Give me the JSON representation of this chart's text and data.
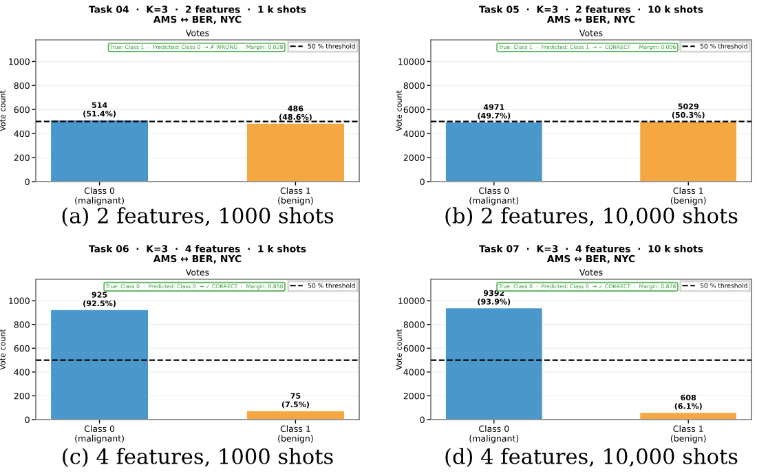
{
  "chart_data": [
    {
      "type": "bar",
      "title": "Task 04  ·  K=3  ·  2 features  ·  1 k shots\nAMS ↔ BER, NYC",
      "subtitle": "Votes",
      "ylabel": "Vote count",
      "categories": [
        "Class 0\n(malignant)",
        "Class 1\n(benign)"
      ],
      "colors": [
        "#4a98cb",
        "#f5a742"
      ],
      "values": [
        514,
        486
      ],
      "value_labels": [
        "514\n(51.4%)",
        "486\n(48.6%)"
      ],
      "ylim": [
        0,
        1180
      ],
      "yticks": [
        0,
        200,
        400,
        600,
        800,
        1000
      ],
      "grid": "y",
      "ref_lines": [
        {
          "axis": "y",
          "value": 500,
          "label": "50 % threshold",
          "color": "#000000",
          "line_style": "dashed"
        }
      ],
      "legend": "top right",
      "annotations": [
        "True: Class 1  ·  Predicted: Class 0  → ✗ WRONG  ·  Margin: 0.028",
        "(a) 2 features, 1000 shots"
      ]
    },
    {
      "type": "bar",
      "title": "Task 05  ·  K=3  ·  2 features  ·  10 k shots\nAMS ↔ BER, NYC",
      "subtitle": "Votes",
      "ylabel": "Vote count",
      "categories": [
        "Class 0\n(malignant)",
        "Class 1\n(benign)"
      ],
      "colors": [
        "#4a98cb",
        "#f5a742"
      ],
      "values": [
        4971,
        5029
      ],
      "value_labels": [
        "4971\n(49.7%)",
        "5029\n(50.3%)"
      ],
      "ylim": [
        0,
        11800
      ],
      "yticks": [
        0,
        2000,
        4000,
        6000,
        8000,
        10000
      ],
      "grid": "y",
      "ref_lines": [
        {
          "axis": "y",
          "value": 5000,
          "label": "50 % threshold",
          "color": "#000000",
          "line_style": "dashed"
        }
      ],
      "legend": "top right",
      "annotations": [
        "True: Class 1  ·  Predicted: Class 1  → ✓ CORRECT  ·  Margin: 0.006",
        "(b) 2 features, 10,000 shots"
      ]
    },
    {
      "type": "bar",
      "title": "Task 06  ·  K=3  ·  4 features  ·  1 k shots\nAMS ↔ BER, NYC",
      "subtitle": "Votes",
      "ylabel": "Vote count",
      "categories": [
        "Class 0\n(malignant)",
        "Class 1\n(benign)"
      ],
      "colors": [
        "#4a98cb",
        "#f5a742"
      ],
      "values": [
        925,
        75
      ],
      "value_labels": [
        "925\n(92.5%)",
        "75\n(7.5%)"
      ],
      "ylim": [
        0,
        1180
      ],
      "yticks": [
        0,
        200,
        400,
        600,
        800,
        1000
      ],
      "grid": "y",
      "ref_lines": [
        {
          "axis": "y",
          "value": 500,
          "label": "50 % threshold",
          "color": "#000000",
          "line_style": "dashed"
        }
      ],
      "legend": "top right",
      "annotations": [
        "True: Class 0  ·  Predicted: Class 0  → ✓ CORRECT  ·  Margin: 0.850",
        "(c) 4 features, 1000 shots"
      ]
    },
    {
      "type": "bar",
      "title": "Task 07  ·  K=3  ·  4 features  ·  10 k shots\nAMS ↔ BER, NYC",
      "subtitle": "Votes",
      "ylabel": "Vote count",
      "categories": [
        "Class 0\n(malignant)",
        "Class 1\n(benign)"
      ],
      "colors": [
        "#4a98cb",
        "#f5a742"
      ],
      "values": [
        9392,
        608
      ],
      "value_labels": [
        "9392\n(93.9%)",
        "608\n(6.1%)"
      ],
      "ylim": [
        0,
        11800
      ],
      "yticks": [
        0,
        2000,
        4000,
        6000,
        8000,
        10000
      ],
      "grid": "y",
      "ref_lines": [
        {
          "axis": "y",
          "value": 5000,
          "label": "50 % threshold",
          "color": "#000000",
          "line_style": "dashed"
        }
      ],
      "legend": "top right",
      "annotations": [
        "True: Class 0  ·  Predicted: Class 0  → ✓ CORRECT  ·  Margin: 0.878",
        "(d) 4 features, 10,000 shots"
      ]
    }
  ]
}
